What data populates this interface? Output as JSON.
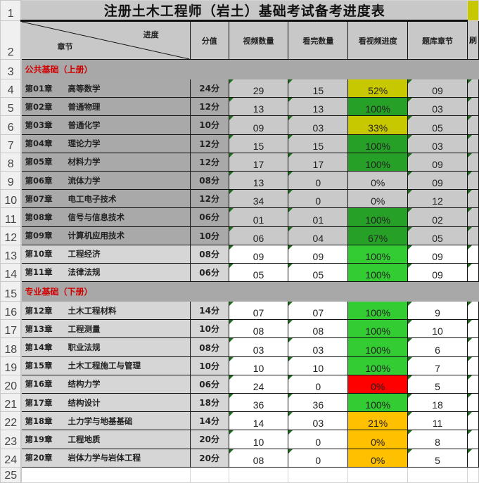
{
  "title": "注册土木工程师（岩土）基础考试备考进度表",
  "header": {
    "diag_top": "进度",
    "diag_bottom": "章节",
    "score": "分值",
    "video_count": "视频数量",
    "watched_count": "看完数量",
    "video_progress": "看视频进度",
    "bank_chapter": "题库章节",
    "next_col_partial": "刷"
  },
  "colors": {
    "yellow": "#c8c800",
    "green_selected": "#26a026",
    "green": "#33cc33",
    "red": "#ff0000",
    "orange": "#ffc000"
  },
  "row_numbers": [
    "1",
    "2",
    "3",
    "4",
    "5",
    "6",
    "7",
    "8",
    "9",
    "10",
    "11",
    "12",
    "13",
    "14",
    "15",
    "16",
    "17",
    "18",
    "19",
    "20",
    "21",
    "22",
    "23",
    "24",
    "25"
  ],
  "sections": {
    "public": "公共基础（上册）",
    "professional": "专业基础（下册）"
  },
  "rows_public": [
    {
      "ch": "第01章",
      "name": "高等数学",
      "score": "24分",
      "videos": "29",
      "watched": "15",
      "progress": "52%",
      "bank": "09",
      "fill": "yellow"
    },
    {
      "ch": "第02章",
      "name": "普通物理",
      "score": "12分",
      "videos": "13",
      "watched": "13",
      "progress": "100%",
      "bank": "03",
      "fill": "green_selected"
    },
    {
      "ch": "第03章",
      "name": "普通化学",
      "score": "10分",
      "videos": "09",
      "watched": "03",
      "progress": "33%",
      "bank": "05",
      "fill": "yellow"
    },
    {
      "ch": "第04章",
      "name": "理论力学",
      "score": "12分",
      "videos": "15",
      "watched": "15",
      "progress": "100%",
      "bank": "03",
      "fill": "green_selected"
    },
    {
      "ch": "第05章",
      "name": "材料力学",
      "score": "12分",
      "videos": "17",
      "watched": "17",
      "progress": "100%",
      "bank": "09",
      "fill": "green_selected"
    },
    {
      "ch": "第06章",
      "name": "流体力学",
      "score": "08分",
      "videos": "13",
      "watched": "0",
      "progress": "0%",
      "bank": "09",
      "fill": ""
    },
    {
      "ch": "第07章",
      "name": "电工电子技术",
      "score": "12分",
      "videos": "34",
      "watched": "0",
      "progress": "0%",
      "bank": "12",
      "fill": ""
    },
    {
      "ch": "第08章",
      "name": "信号与信息技术",
      "score": "06分",
      "videos": "01",
      "watched": "01",
      "progress": "100%",
      "bank": "02",
      "fill": "green_selected"
    },
    {
      "ch": "第09章",
      "name": "计算机应用技术",
      "score": "10分",
      "videos": "06",
      "watched": "04",
      "progress": "67%",
      "bank": "05",
      "fill": "green_selected"
    },
    {
      "ch": "第10章",
      "name": "工程经济",
      "score": "08分",
      "videos": "09",
      "watched": "09",
      "progress": "100%",
      "bank": "09",
      "fill": "green"
    },
    {
      "ch": "第11章",
      "name": "法律法规",
      "score": "06分",
      "videos": "05",
      "watched": "05",
      "progress": "100%",
      "bank": "09",
      "fill": "green"
    }
  ],
  "rows_professional": [
    {
      "ch": "第12章",
      "name": "土木工程材料",
      "score": "14分",
      "videos": "07",
      "watched": "07",
      "progress": "100%",
      "bank": "9",
      "fill": "green"
    },
    {
      "ch": "第13章",
      "name": "工程测量",
      "score": "10分",
      "videos": "08",
      "watched": "08",
      "progress": "100%",
      "bank": "10",
      "fill": "green"
    },
    {
      "ch": "第14章",
      "name": "职业法规",
      "score": "08分",
      "videos": "03",
      "watched": "03",
      "progress": "100%",
      "bank": "6",
      "fill": "green"
    },
    {
      "ch": "第15章",
      "name": "土木工程施工与管理",
      "score": "10分",
      "videos": "10",
      "watched": "10",
      "progress": "100%",
      "bank": "7",
      "fill": "green"
    },
    {
      "ch": "第16章",
      "name": "结构力学",
      "score": "06分",
      "videos": "24",
      "watched": "0",
      "progress": "0%",
      "bank": "5",
      "fill": "red"
    },
    {
      "ch": "第17章",
      "name": "结构设计",
      "score": "18分",
      "videos": "36",
      "watched": "36",
      "progress": "100%",
      "bank": "18",
      "fill": "green"
    },
    {
      "ch": "第18章",
      "name": "土力学与地基基础",
      "score": "14分",
      "videos": "14",
      "watched": "03",
      "progress": "21%",
      "bank": "11",
      "fill": "orange"
    },
    {
      "ch": "第19章",
      "name": "工程地质",
      "score": "20分",
      "videos": "10",
      "watched": "0",
      "progress": "0%",
      "bank": "8",
      "fill": "orange"
    },
    {
      "ch": "第20章",
      "name": "岩体力学与岩体工程",
      "score": "20分",
      "videos": "08",
      "watched": "0",
      "progress": "0%",
      "bank": "5",
      "fill": "orange"
    }
  ]
}
